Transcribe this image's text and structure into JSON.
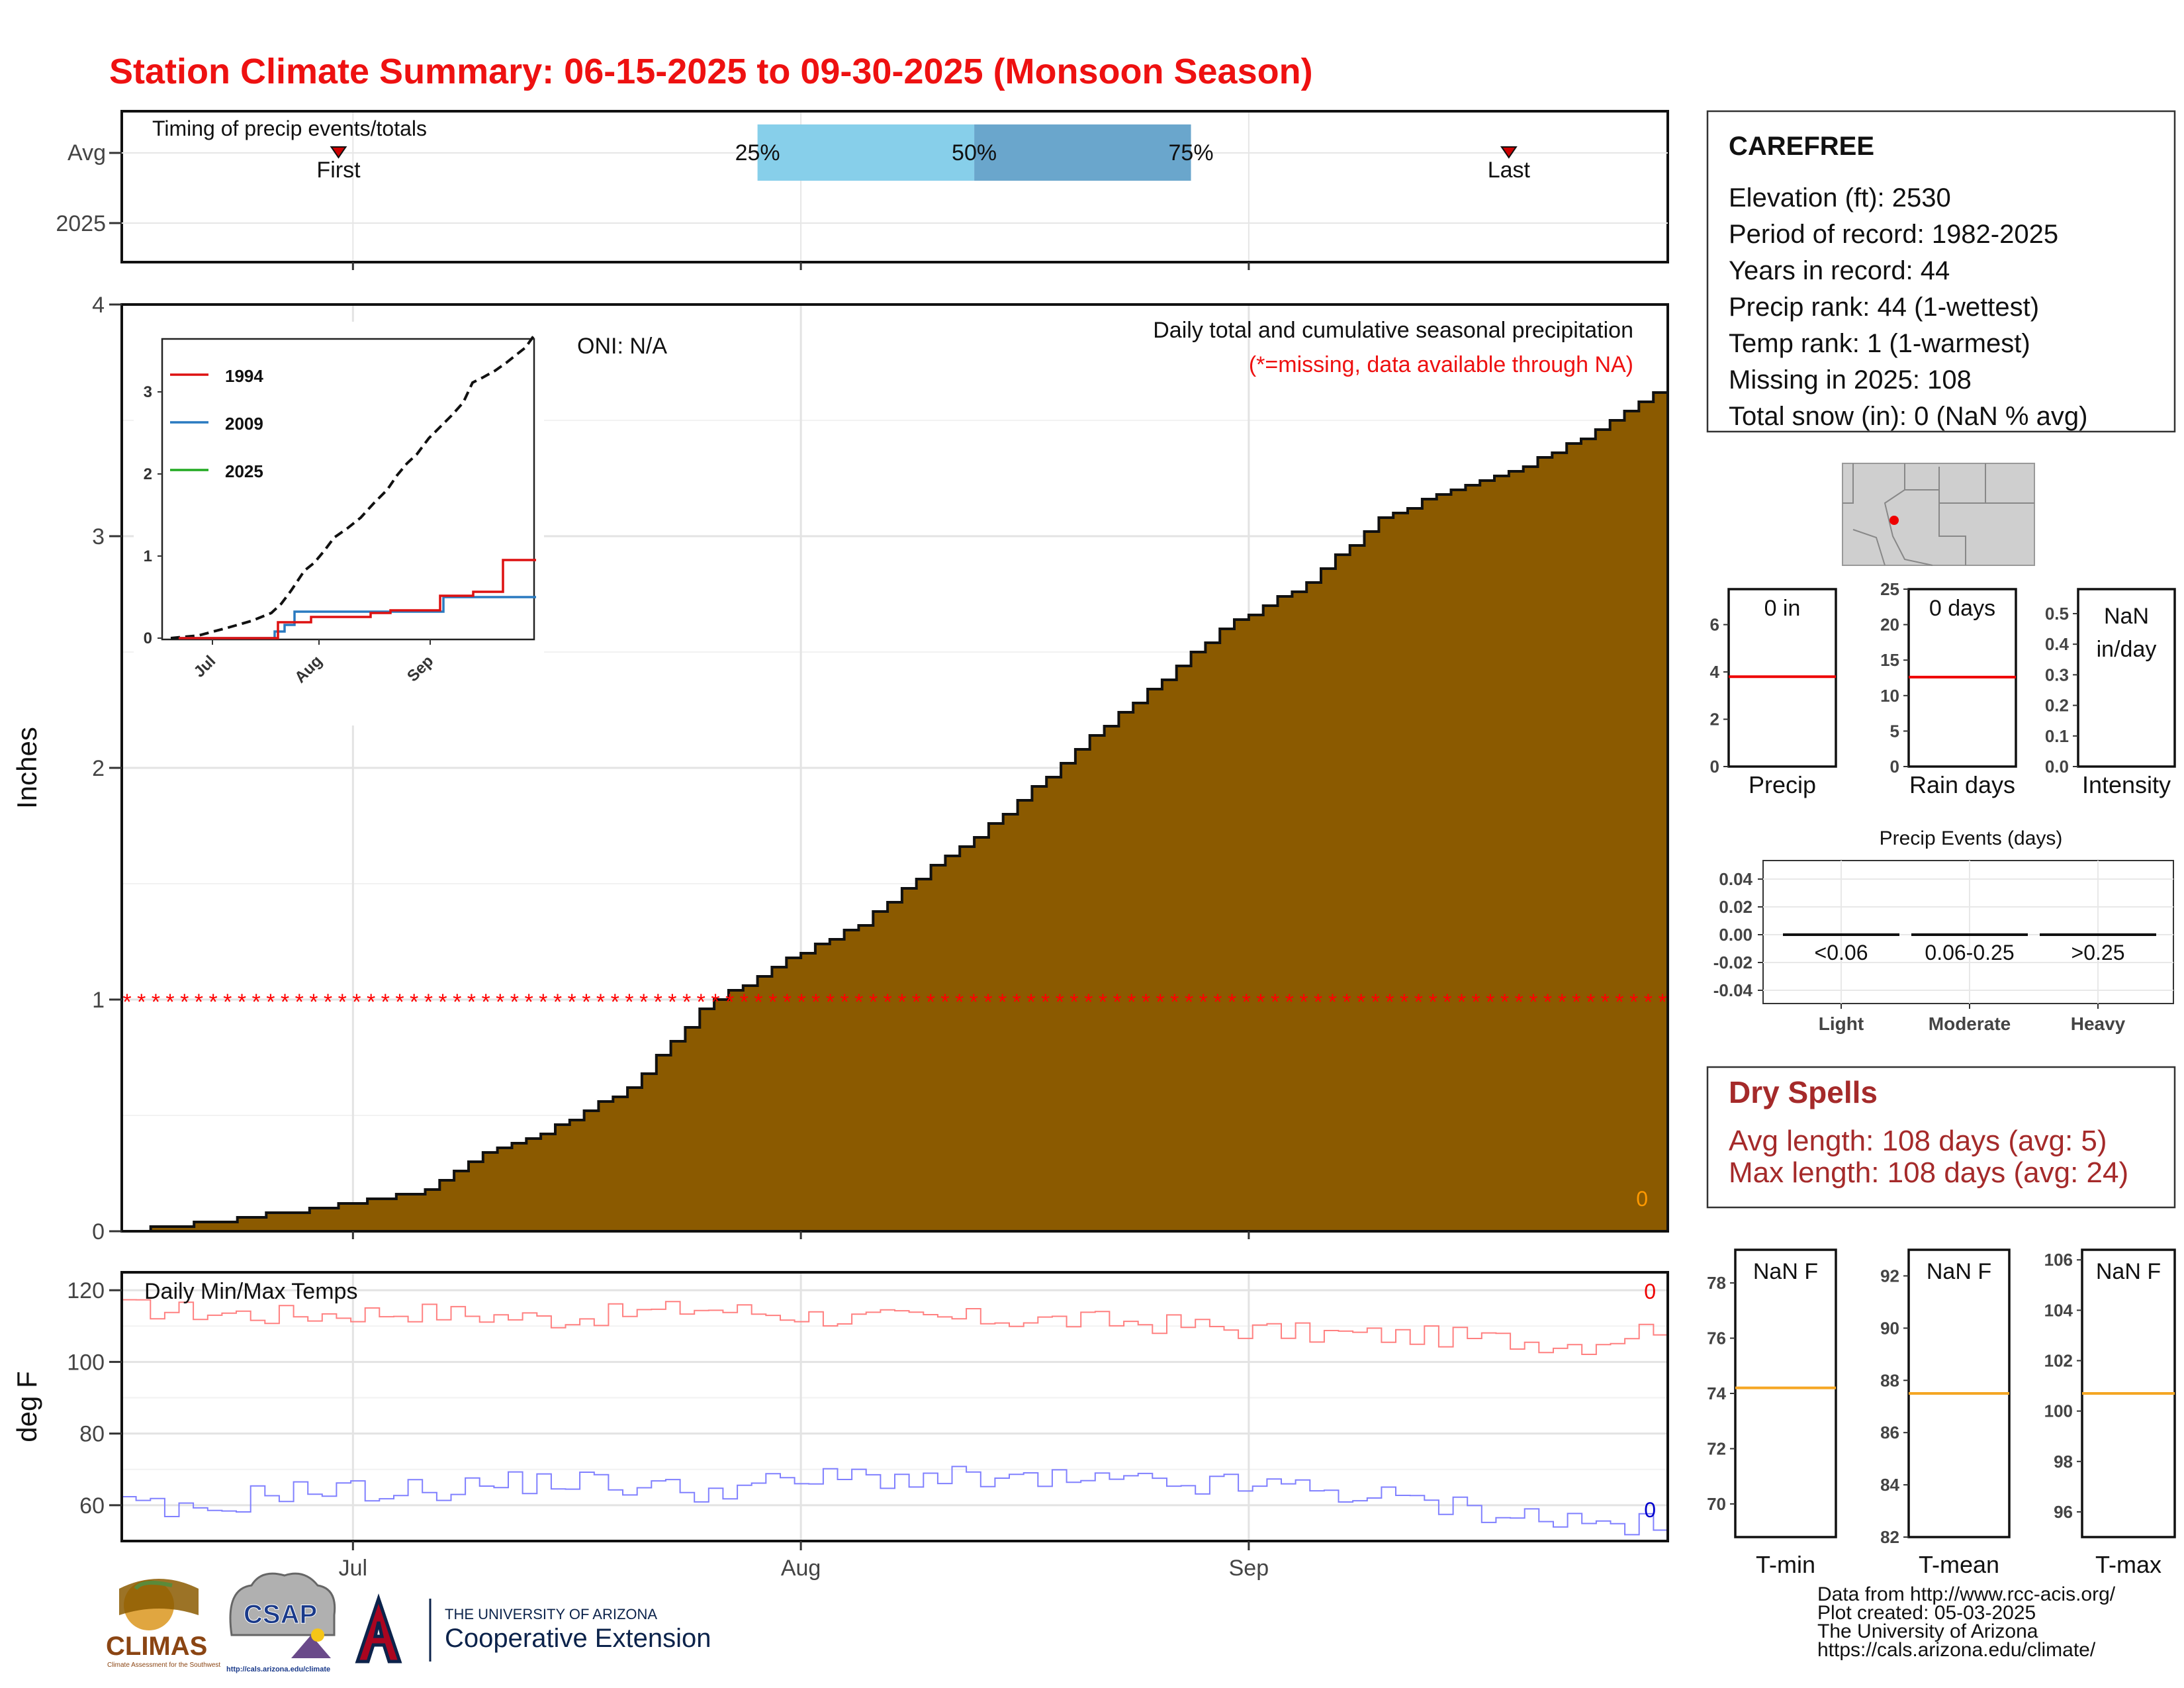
{
  "title": "Station Climate Summary: 06-15-2025 to 09-30-2025 (Monsoon Season)",
  "colors": {
    "title": "#ee1111",
    "precip_fill": "#8b5a00",
    "missing": "#ff0000",
    "iqr_low": "#87cfea",
    "iqr_high": "#6aa6cc",
    "tmax": "#ff8080",
    "tmin": "#8080ff",
    "avg_line_red": "#ee0000",
    "avg_line_orange": "#f5a623",
    "dry_spell": "#a52a2a"
  },
  "timing": {
    "title": "Timing of precip events/totals",
    "row_labels": [
      "Avg",
      "2025"
    ],
    "first_label": "First",
    "last_label": "Last",
    "q25_label": "25%",
    "q50_label": "50%",
    "q75_label": "75%",
    "first_date": "2025-06-30",
    "last_date": "2025-09-19",
    "q25_date": "2025-07-29",
    "q50_date": "2025-08-13",
    "q75_date": "2025-08-28"
  },
  "precip_panel": {
    "title": "Daily total and cumulative seasonal precipitation",
    "missing_note": "(*=missing, data available through NA)",
    "oni": "ONI: N/A",
    "ylabel": "Inches",
    "yticks": [
      "0",
      "1",
      "2",
      "3",
      "4"
    ],
    "count_label": "0"
  },
  "inset": {
    "legend": [
      "1994",
      "2009",
      "2025"
    ],
    "legend_colors": [
      "#dd1111",
      "#2a7ac0",
      "#22aa22"
    ],
    "yticks": [
      "0",
      "1",
      "2",
      "3"
    ],
    "xticks": [
      "Jul",
      "Aug",
      "Sep"
    ]
  },
  "temp_panel": {
    "title": "Daily Min/Max Temps",
    "ylabel": "deg F",
    "yticks": [
      "60",
      "80",
      "100",
      "120"
    ],
    "xticks": [
      "Jul",
      "Aug",
      "Sep"
    ],
    "tmax_count": "0",
    "tmin_count": "0"
  },
  "station": {
    "name": "CAREFREE",
    "lines": [
      "Elevation (ft): 2530",
      "Period of record: 1982-2025",
      "Years in record: 44",
      "Precip rank: 44 (1-wettest)",
      "Temp rank: 1 (1-warmest)",
      "Missing in 2025: 108",
      "Total snow (in): 0 (NaN % avg)"
    ]
  },
  "mini_precip": [
    {
      "label": "Precip",
      "value": "0 in",
      "yticks": [
        "0",
        "2",
        "4",
        "6"
      ],
      "ymax": 7.5,
      "avg": 3.8
    },
    {
      "label": "Rain days",
      "value": "0 days",
      "yticks": [
        "0",
        "5",
        "10",
        "15",
        "20",
        "25"
      ],
      "ymax": 25,
      "avg": 12.6
    },
    {
      "label": "Intensity",
      "value": "NaN in/day",
      "value_lines": [
        "NaN",
        "in/day"
      ],
      "yticks": [
        "0.0",
        "0.1",
        "0.2",
        "0.3",
        "0.4",
        "0.5"
      ],
      "ymax": 0.58,
      "avg": null
    }
  ],
  "events": {
    "title": "Precip Events (days)",
    "yticks": [
      "0.04",
      "0.02",
      "0.00",
      "-0.02",
      "-0.04"
    ],
    "bins": [
      "<0.06",
      "0.06-0.25",
      ">0.25"
    ],
    "categories": [
      "Light",
      "Moderate",
      "Heavy"
    ]
  },
  "dry_spells": {
    "title": "Dry Spells",
    "avg": "Avg length: 108 days (avg: 5)",
    "max": "Max length: 108 days (avg: 24)"
  },
  "mini_temps": [
    {
      "label": "T-min",
      "value": "NaN F",
      "yticks": [
        "70",
        "72",
        "74",
        "76",
        "78"
      ],
      "ymin": 68.8,
      "ymax": 79.2,
      "avg": 74.2
    },
    {
      "label": "T-mean",
      "value": "NaN F",
      "yticks": [
        "82",
        "84",
        "86",
        "88",
        "90",
        "92"
      ],
      "ymin": 82,
      "ymax": 93,
      "avg": 87.5
    },
    {
      "label": "T-max",
      "value": "NaN F",
      "yticks": [
        "96",
        "98",
        "100",
        "102",
        "104",
        "106"
      ],
      "ymin": 95,
      "ymax": 106.4,
      "avg": 100.7
    }
  ],
  "footer": {
    "lines": [
      "Data from http://www.rcc-acis.org/",
      "Plot created: 05-03-2025",
      "The University of Arizona",
      "https://cals.arizona.edu/climate/"
    ],
    "logo_climas": "CLIMAS",
    "logo_climas_sub": "Climate Assessment for the Southwest",
    "logo_csap": "CSAP",
    "logo_csap_url": "http://cals.arizona.edu/climate",
    "ua_line1": "THE UNIVERSITY OF ARIZONA",
    "ua_line2": "Cooperative Extension"
  },
  "chart_data": {
    "type": "area",
    "x_range": [
      "2025-06-15",
      "2025-09-30"
    ],
    "xticks": [
      "Jul",
      "Aug",
      "Sep"
    ],
    "ylim": [
      0,
      4
    ],
    "avg_cumulative_precip": {
      "x": [
        "2025-06-15",
        "2025-06-25",
        "2025-07-01",
        "2025-07-06",
        "2025-07-10",
        "2025-07-15",
        "2025-07-20",
        "2025-07-25",
        "2025-07-30",
        "2025-08-05",
        "2025-08-10",
        "2025-08-15",
        "2025-08-20",
        "2025-08-25",
        "2025-08-30",
        "2025-09-05",
        "2025-09-10",
        "2025-09-15",
        "2025-09-20",
        "2025-09-25",
        "2025-09-30"
      ],
      "y": [
        0.0,
        0.07,
        0.12,
        0.18,
        0.33,
        0.45,
        0.62,
        0.95,
        1.15,
        1.32,
        1.57,
        1.8,
        2.08,
        2.33,
        2.6,
        2.8,
        3.08,
        3.2,
        3.3,
        3.45,
        3.65
      ]
    },
    "missing_marker_level": 1.0,
    "temps": {
      "ylim": [
        50,
        125
      ],
      "tmax": {
        "x": [
          "2025-06-15",
          "2025-06-25",
          "2025-07-05",
          "2025-07-15",
          "2025-07-25",
          "2025-08-05",
          "2025-08-15",
          "2025-08-25",
          "2025-09-05",
          "2025-09-15",
          "2025-09-25",
          "2025-09-30"
        ],
        "y": [
          115,
          113,
          114,
          112,
          115,
          112,
          112,
          111,
          108,
          107,
          105,
          110
        ]
      },
      "tmin": {
        "x": [
          "2025-06-15",
          "2025-06-20",
          "2025-06-25",
          "2025-07-05",
          "2025-07-15",
          "2025-07-25",
          "2025-08-05",
          "2025-08-15",
          "2025-08-25",
          "2025-09-05",
          "2025-09-15",
          "2025-09-25",
          "2025-09-30"
        ],
        "y": [
          60,
          57,
          64,
          64,
          67,
          64,
          68,
          67,
          66,
          65,
          60,
          55,
          54
        ]
      }
    }
  }
}
